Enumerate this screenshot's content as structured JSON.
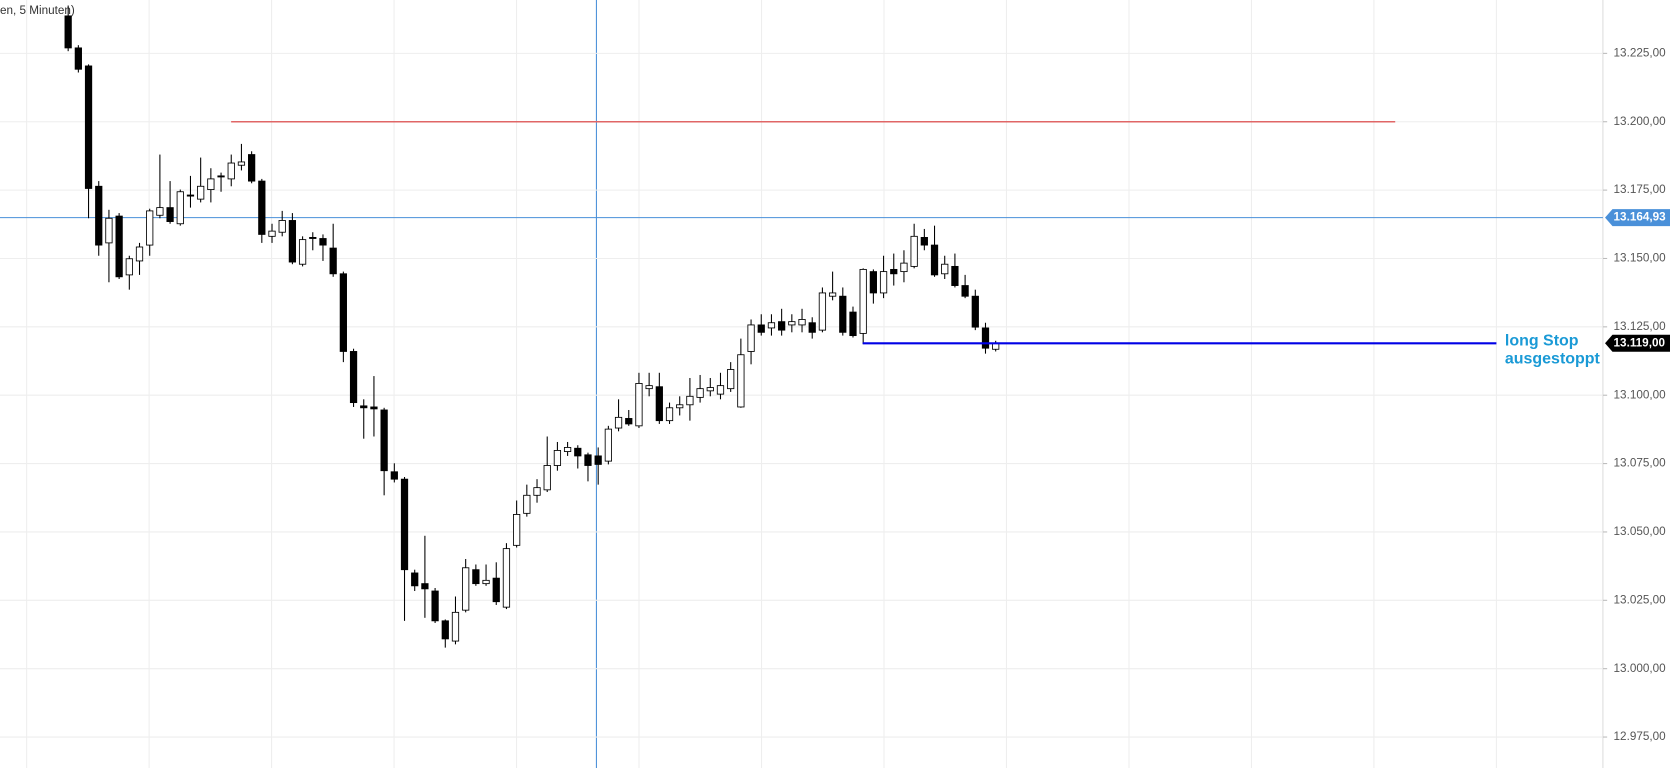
{
  "chart_data": {
    "type": "candlestick",
    "title": "en, 5 Minuten)",
    "open": [
      13238.7,
      13227.0,
      13220.4,
      13176.4,
      13155.7,
      13165.5,
      13144.0,
      13149.1,
      13154.9,
      13165.8,
      13168.6,
      13162.7,
      13173.2,
      13171.7,
      13175.2,
      13180.2,
      13179.1,
      13184.1,
      13188.0,
      13178.3,
      13158.1,
      13159.6,
      13163.9,
      13147.9,
      13157.7,
      13157.3,
      13153.8,
      13144.4,
      13116.0,
      13096.1,
      13095.7,
      13094.6,
      13072.0,
      13069.3,
      13035.0,
      13031.1,
      13028.4,
      13017.5,
      13010.1,
      13021.4,
      13036.2,
      13031.1,
      13033.1,
      13022.5,
      13045.1,
      13056.8,
      13063.4,
      13065.4,
      13074.3,
      13079.4,
      13080.6,
      13078.2,
      13077.8,
      13075.9,
      13088.0,
      13091.5,
      13088.8,
      13102.4,
      13103.1,
      13090.7,
      13095.4,
      13096.5,
      13099.2,
      13101.6,
      13100.4,
      13102.4,
      13095.7,
      13116.0,
      13125.7,
      13124.6,
      13126.9,
      13125.7,
      13125.7,
      13126.5,
      13123.8,
      13136.2,
      13136.2,
      13130.4,
      13122.6,
      13145.2,
      13137.4,
      13146.0,
      13145.2,
      13147.1,
      13157.7,
      13154.9,
      13144.4,
      13147.1,
      13140.1,
      13136.2,
      13124.6,
      13116.8
    ],
    "high": [
      13242.5,
      13228.0,
      13221.0,
      13178.3,
      13167.8,
      13166.6,
      13151.0,
      13155.7,
      13168.2,
      13188.0,
      13178.3,
      13175.2,
      13180.2,
      13186.9,
      13183.0,
      13181.4,
      13188.0,
      13191.9,
      13189.2,
      13179.1,
      13162.7,
      13167.4,
      13166.6,
      13158.1,
      13159.6,
      13158.8,
      13162.7,
      13145.2,
      13117.0,
      13098.5,
      13107.0,
      13095.4,
      13075.1,
      13070.1,
      13036.2,
      13048.6,
      13029.5,
      13018.0,
      13026.4,
      13040.1,
      13038.1,
      13038.1,
      13038.9,
      13045.9,
      13061.5,
      13067.3,
      13069.3,
      13084.9,
      13082.9,
      13082.9,
      13081.7,
      13079.0,
      13080.9,
      13088.8,
      13098.5,
      13094.6,
      13108.2,
      13108.2,
      13108.2,
      13097.3,
      13099.6,
      13106.3,
      13107.4,
      13106.3,
      13108.2,
      13112.1,
      13120.7,
      13127.7,
      13129.6,
      13129.6,
      13131.6,
      13129.6,
      13131.6,
      13128.5,
      13139.4,
      13145.2,
      13139.4,
      13132.4,
      13146.4,
      13146.0,
      13151.0,
      13151.8,
      13153.0,
      13162.7,
      13160.8,
      13162.0,
      13151.0,
      13151.8,
      13144.0,
      13138.6,
      13126.5,
      13119.9
    ],
    "low": [
      13225.8,
      13218.0,
      13164.7,
      13151.0,
      13141.3,
      13142.5,
      13138.6,
      13144.0,
      13151.0,
      13164.7,
      13162.7,
      13162.0,
      13168.6,
      13170.5,
      13170.5,
      13174.4,
      13176.4,
      13182.2,
      13177.5,
      13155.7,
      13155.7,
      13158.1,
      13147.9,
      13147.1,
      13153.0,
      13149.1,
      13143.3,
      13112.1,
      13095.7,
      13084.1,
      13084.9,
      13063.4,
      13068.1,
      13017.5,
      13028.4,
      13018.6,
      13016.7,
      13007.7,
      13008.9,
      13020.6,
      13030.3,
      13030.3,
      13023.3,
      13021.8,
      13044.3,
      13055.6,
      13060.7,
      13064.6,
      13072.4,
      13077.8,
      13073.2,
      13068.5,
      13067.3,
      13074.7,
      13086.8,
      13088.8,
      13088.0,
      13099.6,
      13089.5,
      13089.5,
      13092.6,
      13090.7,
      13097.3,
      13099.6,
      13098.5,
      13101.2,
      13095.4,
      13111.3,
      13121.8,
      13121.8,
      13121.8,
      13123.0,
      13123.0,
      13120.7,
      13123.0,
      13134.7,
      13121.8,
      13121.1,
      13118.7,
      13133.5,
      13135.5,
      13140.1,
      13141.3,
      13146.4,
      13153.0,
      13143.3,
      13142.5,
      13139.4,
      13135.5,
      13123.8,
      13115.2,
      13116.0
    ],
    "close": [
      13227.0,
      13219.2,
      13175.6,
      13154.9,
      13164.7,
      13143.3,
      13149.9,
      13154.2,
      13167.4,
      13168.6,
      13163.5,
      13174.4,
      13173.0,
      13176.4,
      13179.1,
      13179.9,
      13184.9,
      13185.3,
      13178.3,
      13158.8,
      13160.0,
      13163.9,
      13148.7,
      13156.9,
      13157.3,
      13154.9,
      13144.4,
      13116.0,
      13097.3,
      13095.4,
      13095.0,
      13072.4,
      13069.3,
      13036.2,
      13030.3,
      13029.2,
      13017.5,
      13010.9,
      13020.6,
      13036.9,
      13031.1,
      13032.3,
      13024.5,
      13043.9,
      13056.4,
      13063.4,
      13066.2,
      13074.3,
      13079.8,
      13080.9,
      13077.8,
      13074.3,
      13074.7,
      13087.6,
      13091.9,
      13089.5,
      13104.3,
      13103.5,
      13090.7,
      13095.4,
      13096.5,
      13099.6,
      13102.4,
      13102.8,
      13103.5,
      13109.4,
      13114.8,
      13125.7,
      13123.0,
      13126.5,
      13123.8,
      13126.9,
      13127.7,
      13123.0,
      13137.4,
      13137.4,
      13123.0,
      13121.8,
      13146.0,
      13137.4,
      13145.2,
      13144.4,
      13148.3,
      13158.1,
      13154.9,
      13144.0,
      13147.9,
      13140.1,
      13136.2,
      13124.9,
      13117.2,
      13119.0
    ],
    "up_color": "#ffffff",
    "down_color": "#000000",
    "ylim": [
      12963.7,
      13244.5
    ],
    "yticks": [
      {
        "value": 12975,
        "label": "12.975,00"
      },
      {
        "value": 13000,
        "label": "13.000,00"
      },
      {
        "value": 13025,
        "label": "13.025,00"
      },
      {
        "value": 13050,
        "label": "13.050,00"
      },
      {
        "value": 13075,
        "label": "13.075,00"
      },
      {
        "value": 13100,
        "label": "13.100,00"
      },
      {
        "value": 13125,
        "label": "13.125,00"
      },
      {
        "value": 13150,
        "label": "13.150,00"
      },
      {
        "value": 13175,
        "label": "13.175,00"
      },
      {
        "value": 13200,
        "label": "13.200,00"
      },
      {
        "value": 13225,
        "label": "13.225,00"
      }
    ],
    "grid": true,
    "crosshair": {
      "value": 13164.93,
      "label": "13.164,93",
      "color": "#4a90d9"
    },
    "last_price": {
      "value": 13119,
      "label": "13.119,00",
      "color": "#000000"
    },
    "resistance_line": {
      "value": 13200,
      "color": "#e06666"
    },
    "stop_line": {
      "value": 13119,
      "label": [
        "long Stop",
        "ausgestoppt"
      ],
      "color": "#0000e6",
      "label_color": "#1a9ad6"
    }
  }
}
